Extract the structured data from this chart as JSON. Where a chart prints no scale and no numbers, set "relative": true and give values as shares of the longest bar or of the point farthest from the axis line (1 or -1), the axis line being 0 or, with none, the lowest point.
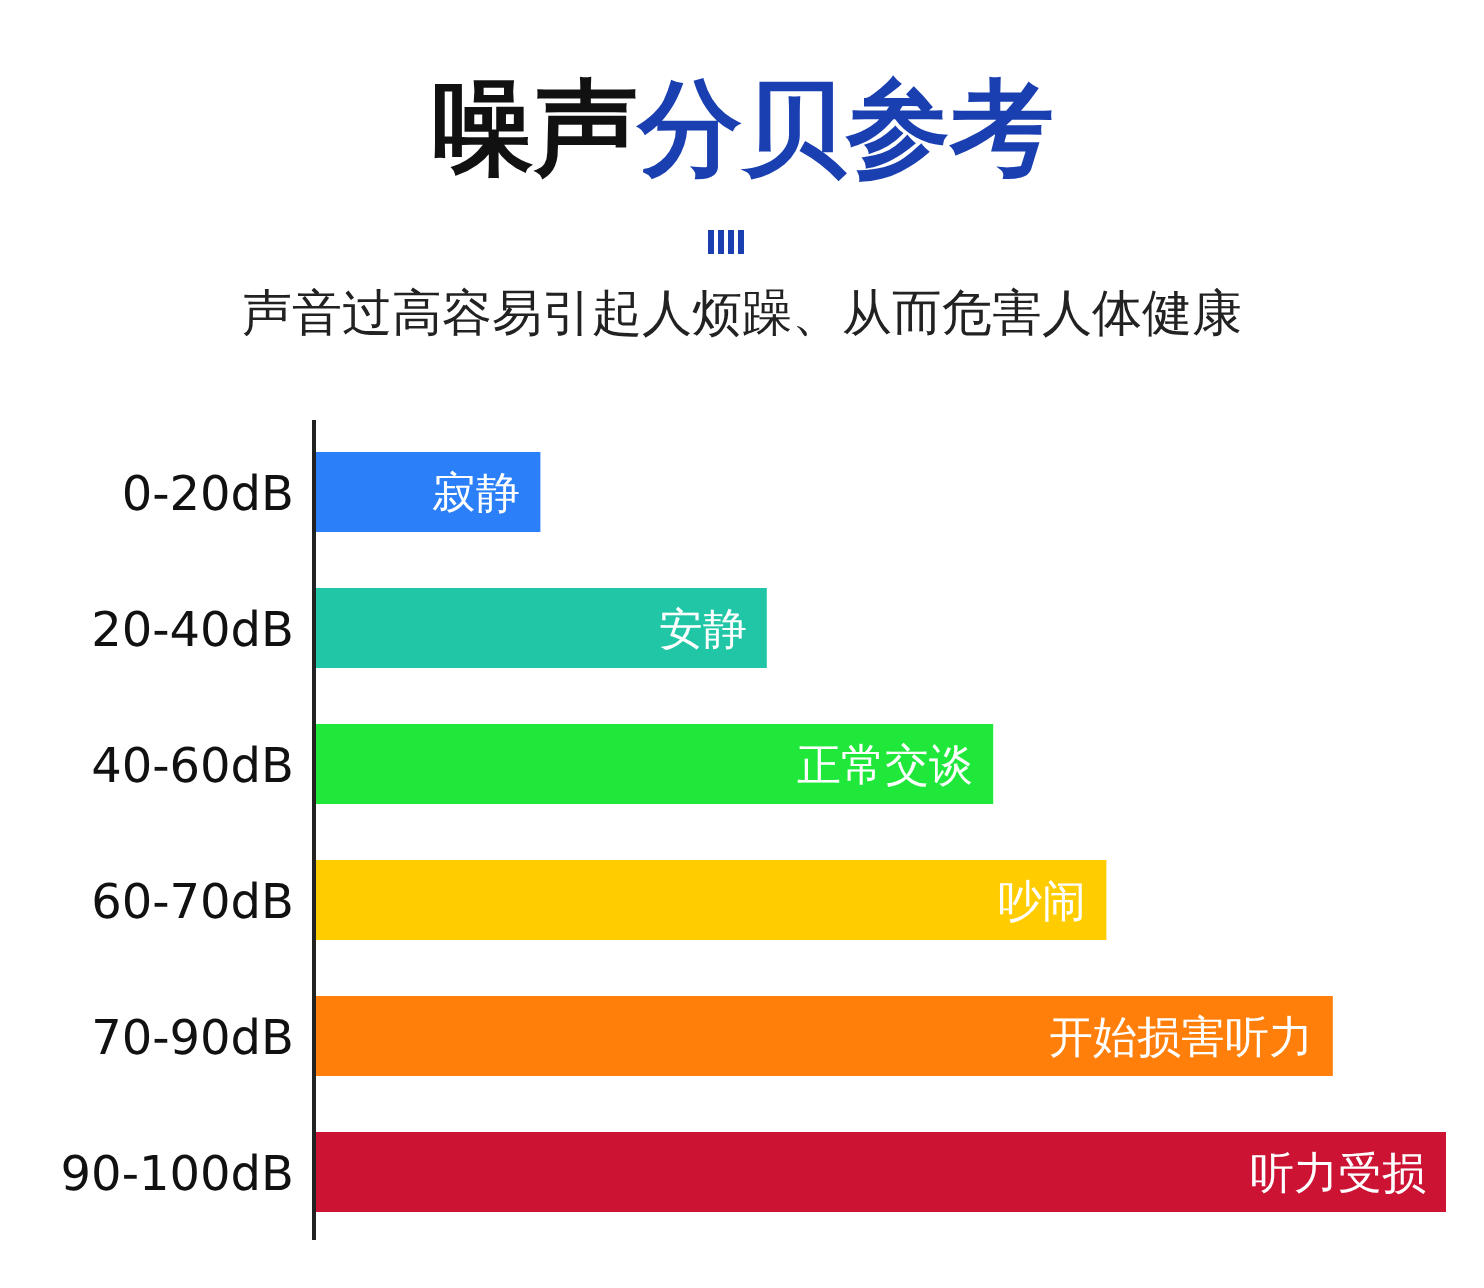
{
  "chart_data": {
    "type": "bar",
    "orientation": "horizontal",
    "relative": true,
    "title": "噪声分贝参考",
    "subtitle": "声音过高容易引起人烦躁、从而危害人体健康",
    "categories": [
      "0-20dB",
      "20-40dB",
      "40-60dB",
      "60-70dB",
      "70-90dB",
      "90-100dB"
    ],
    "values": [
      0.2,
      0.4,
      0.6,
      0.7,
      0.9,
      1.0
    ],
    "colors": [
      "#2b7ff8",
      "#20c6a6",
      "#1fe83a",
      "#ffcc00",
      "#ff7f0a",
      "#cc1333"
    ],
    "annotations": [
      {
        "text": "寂静",
        "x": 0.2,
        "y": "0-20dB"
      },
      {
        "text": "安静",
        "x": 0.4,
        "y": "20-40dB"
      },
      {
        "text": "正常交谈",
        "x": 0.6,
        "y": "40-60dB"
      },
      {
        "text": "吵闹",
        "x": 0.7,
        "y": "60-70dB"
      },
      {
        "text": "开始损害听力",
        "x": 0.9,
        "y": "70-90dB"
      },
      {
        "text": "听力受损",
        "x": 1.0,
        "y": "90-100dB"
      }
    ]
  }
}
